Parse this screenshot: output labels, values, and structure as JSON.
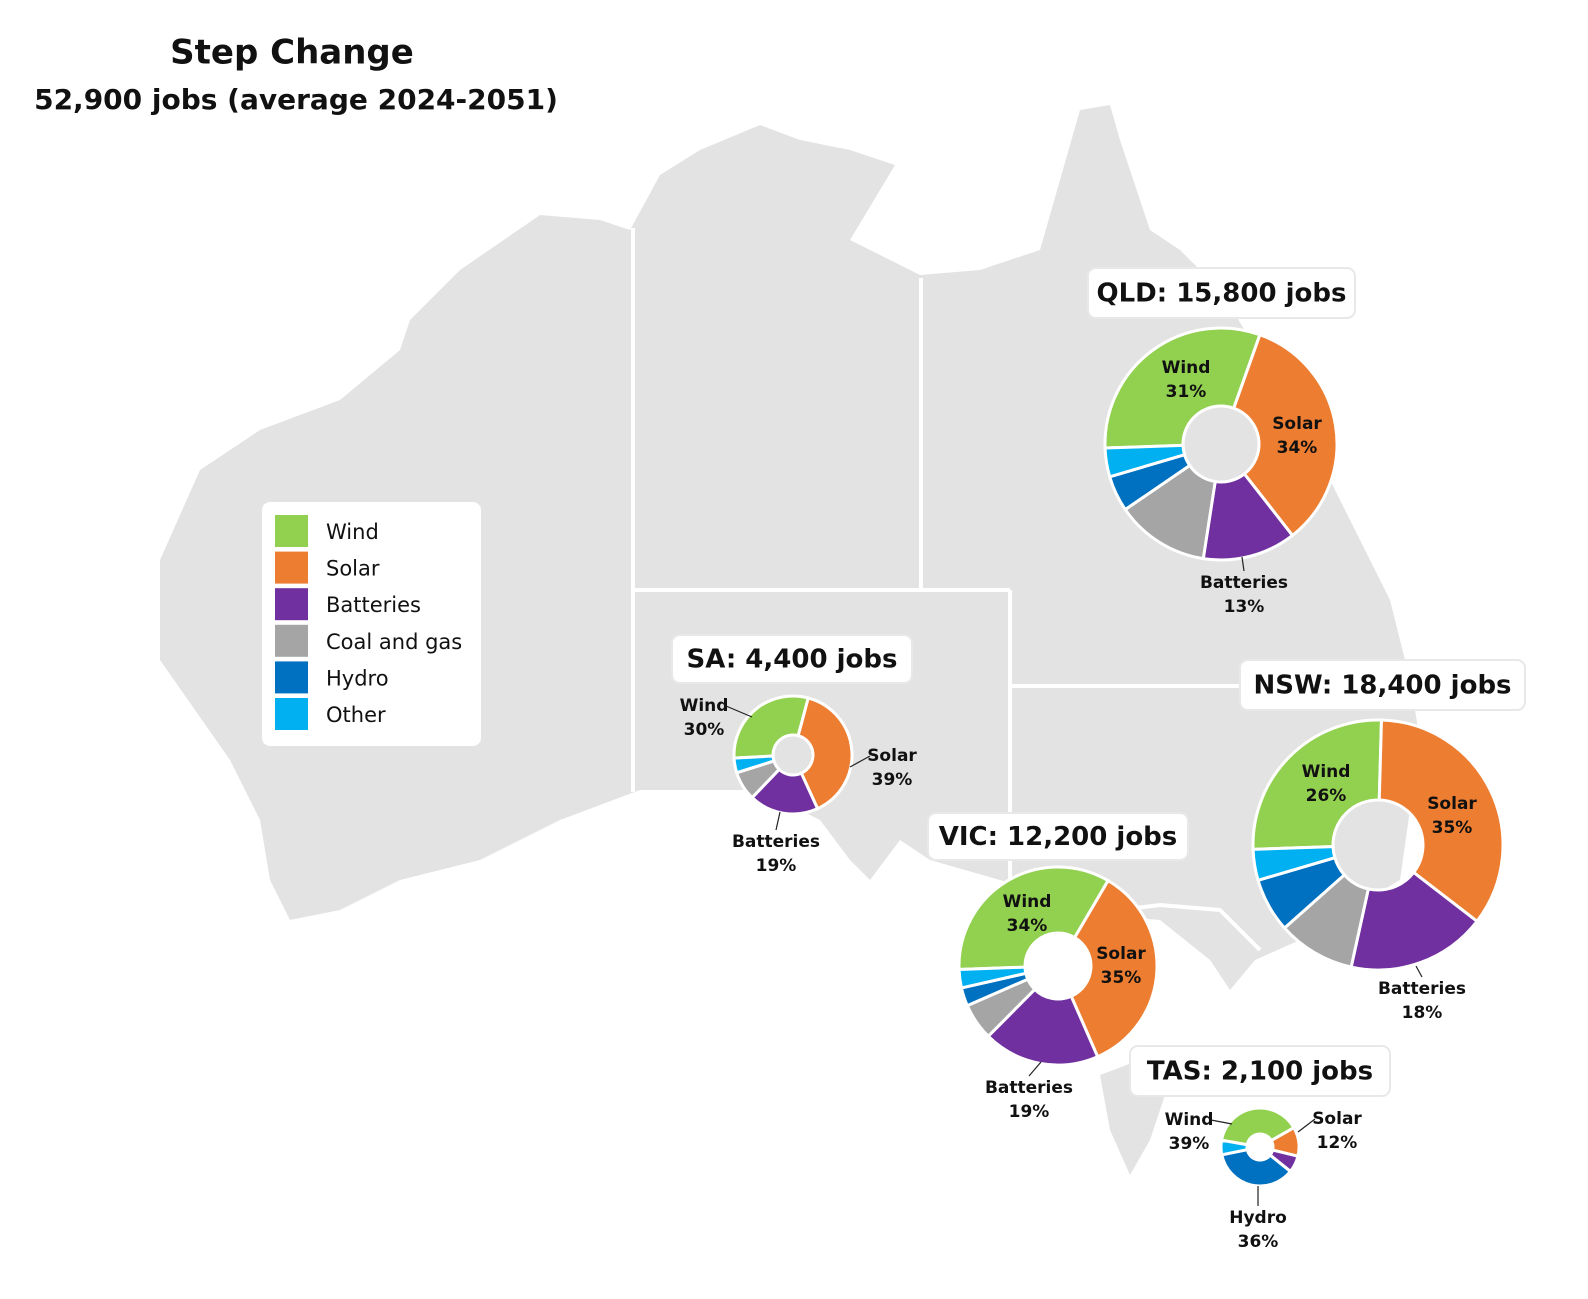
{
  "title": "Step Change",
  "subtitle": "52,900 jobs (average 2024-2051)",
  "chart_data": [
    {
      "type": "donut",
      "title": "QLD: 15,800 jobs",
      "categories": [
        "Wind",
        "Solar",
        "Batteries",
        "Coal and gas",
        "Hydro",
        "Other"
      ],
      "colors": [
        "#92d050",
        "#ed7d31",
        "#7030a0",
        "#a5a5a5",
        "#0070c0",
        "#00b0f0"
      ],
      "values": [
        31,
        34,
        13,
        13,
        5,
        4
      ],
      "value_labels": [
        "31%",
        "34%",
        "13%",
        null,
        null,
        null
      ]
    },
    {
      "type": "donut",
      "title": "SA: 4,400 jobs",
      "categories": [
        "Wind",
        "Solar",
        "Batteries",
        "Coal and gas",
        "Hydro",
        "Other"
      ],
      "colors": [
        "#92d050",
        "#ed7d31",
        "#7030a0",
        "#a5a5a5",
        "#0070c0",
        "#00b0f0"
      ],
      "values": [
        30,
        39,
        19,
        8,
        0,
        4
      ],
      "value_labels": [
        "30%",
        "39%",
        "19%",
        null,
        null,
        null
      ]
    },
    {
      "type": "donut",
      "title": "NSW: 18,400 jobs",
      "categories": [
        "Wind",
        "Solar",
        "Batteries",
        "Coal and gas",
        "Hydro",
        "Other"
      ],
      "colors": [
        "#92d050",
        "#ed7d31",
        "#7030a0",
        "#a5a5a5",
        "#0070c0",
        "#00b0f0"
      ],
      "values": [
        26,
        35,
        18,
        10,
        7,
        4
      ],
      "value_labels": [
        "26%",
        "35%",
        "18%",
        null,
        null,
        null
      ]
    },
    {
      "type": "donut",
      "title": "VIC: 12,200 jobs",
      "categories": [
        "Wind",
        "Solar",
        "Batteries",
        "Coal and gas",
        "Hydro",
        "Other"
      ],
      "colors": [
        "#92d050",
        "#ed7d31",
        "#7030a0",
        "#a5a5a5",
        "#0070c0",
        "#00b0f0"
      ],
      "values": [
        34,
        35,
        19,
        6,
        3,
        3
      ],
      "value_labels": [
        "34%",
        "35%",
        "19%",
        null,
        null,
        null
      ]
    },
    {
      "type": "donut",
      "title": "TAS: 2,100 jobs",
      "categories": [
        "Wind",
        "Solar",
        "Batteries",
        "Coal and gas",
        "Hydro",
        "Other"
      ],
      "colors": [
        "#92d050",
        "#ed7d31",
        "#7030a0",
        "#a5a5a5",
        "#0070c0",
        "#00b0f0"
      ],
      "values": [
        39,
        12,
        7,
        0,
        36,
        6
      ],
      "value_labels": [
        "39%",
        "12%",
        null,
        null,
        "36%",
        null
      ]
    }
  ]
}
